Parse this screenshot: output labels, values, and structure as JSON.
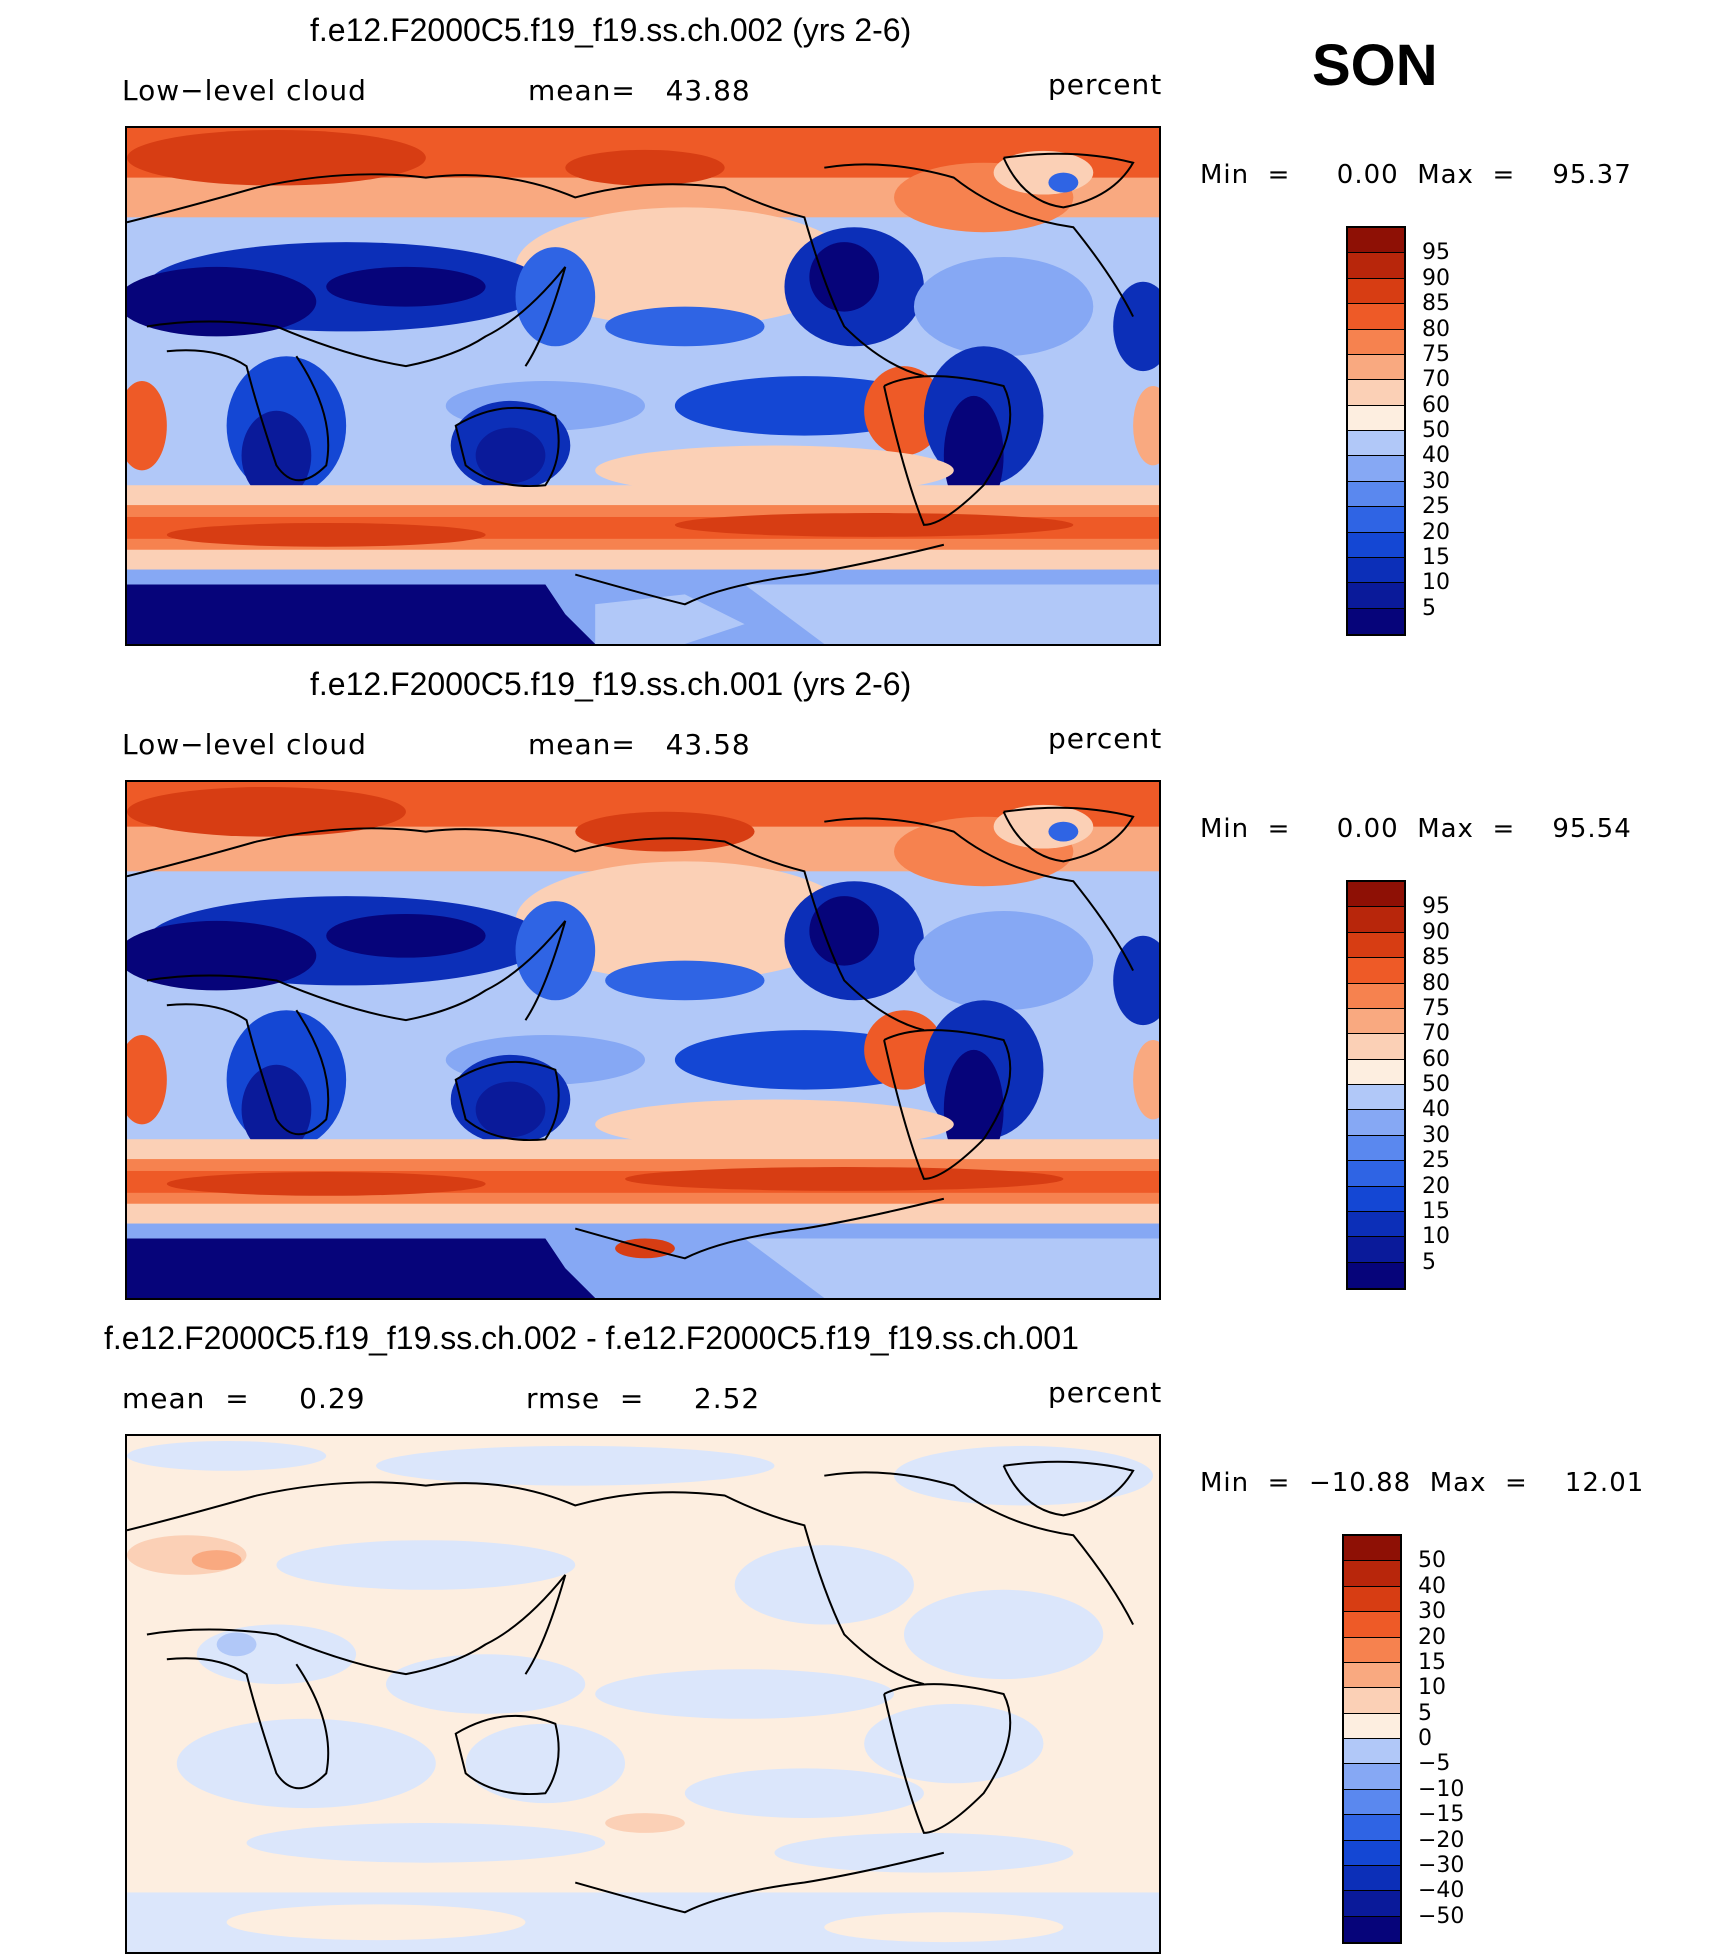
{
  "season": "SON",
  "palette_levels": [
    "#06047a",
    "#0a1a9a",
    "#0c2fb8",
    "#1447d4",
    "#2f64e4",
    "#5a88ef",
    "#86a8f4",
    "#b1c8f8",
    "#dbe6fb",
    "#fdeee0",
    "#fbd0b6",
    "#f9a980",
    "#f6824f",
    "#ee5a27",
    "#d73d13",
    "#b8260b",
    "#8e1005"
  ],
  "panels": [
    {
      "title": "f.e12.F2000C5.f19_f19.ss.ch.002 (yrs 2-6)",
      "left_label": "Low−level cloud",
      "center_label": "mean=   43.88",
      "right_label": "percent",
      "minmax": "Min  =     0.00  Max  =    95.37",
      "colorbar_labels": [
        "95",
        "90",
        "85",
        "80",
        "75",
        "70",
        "60",
        "50",
        "40",
        "30",
        "25",
        "20",
        "15",
        "10",
        "5"
      ]
    },
    {
      "title": "f.e12.F2000C5.f19_f19.ss.ch.001 (yrs 2-6)",
      "left_label": "Low−level cloud",
      "center_label": "mean=   43.58",
      "right_label": "percent",
      "minmax": "Min  =     0.00  Max  =    95.54",
      "colorbar_labels": [
        "95",
        "90",
        "85",
        "80",
        "75",
        "70",
        "60",
        "50",
        "40",
        "30",
        "25",
        "20",
        "15",
        "10",
        "5"
      ]
    },
    {
      "title": "f.e12.F2000C5.f19_f19.ss.ch.002 - f.e12.F2000C5.f19_f19.ss.ch.001",
      "left_label": "mean  =     0.29",
      "center_label": "rmse  =     2.52",
      "right_label": "percent",
      "minmax": "Min  =  −10.88  Max  =    12.01",
      "colorbar_labels": [
        "50",
        "40",
        "30",
        "20",
        "15",
        "10",
        "5",
        "0",
        "−5",
        "−10",
        "−15",
        "−20",
        "−30",
        "−40",
        "−50"
      ]
    }
  ]
}
